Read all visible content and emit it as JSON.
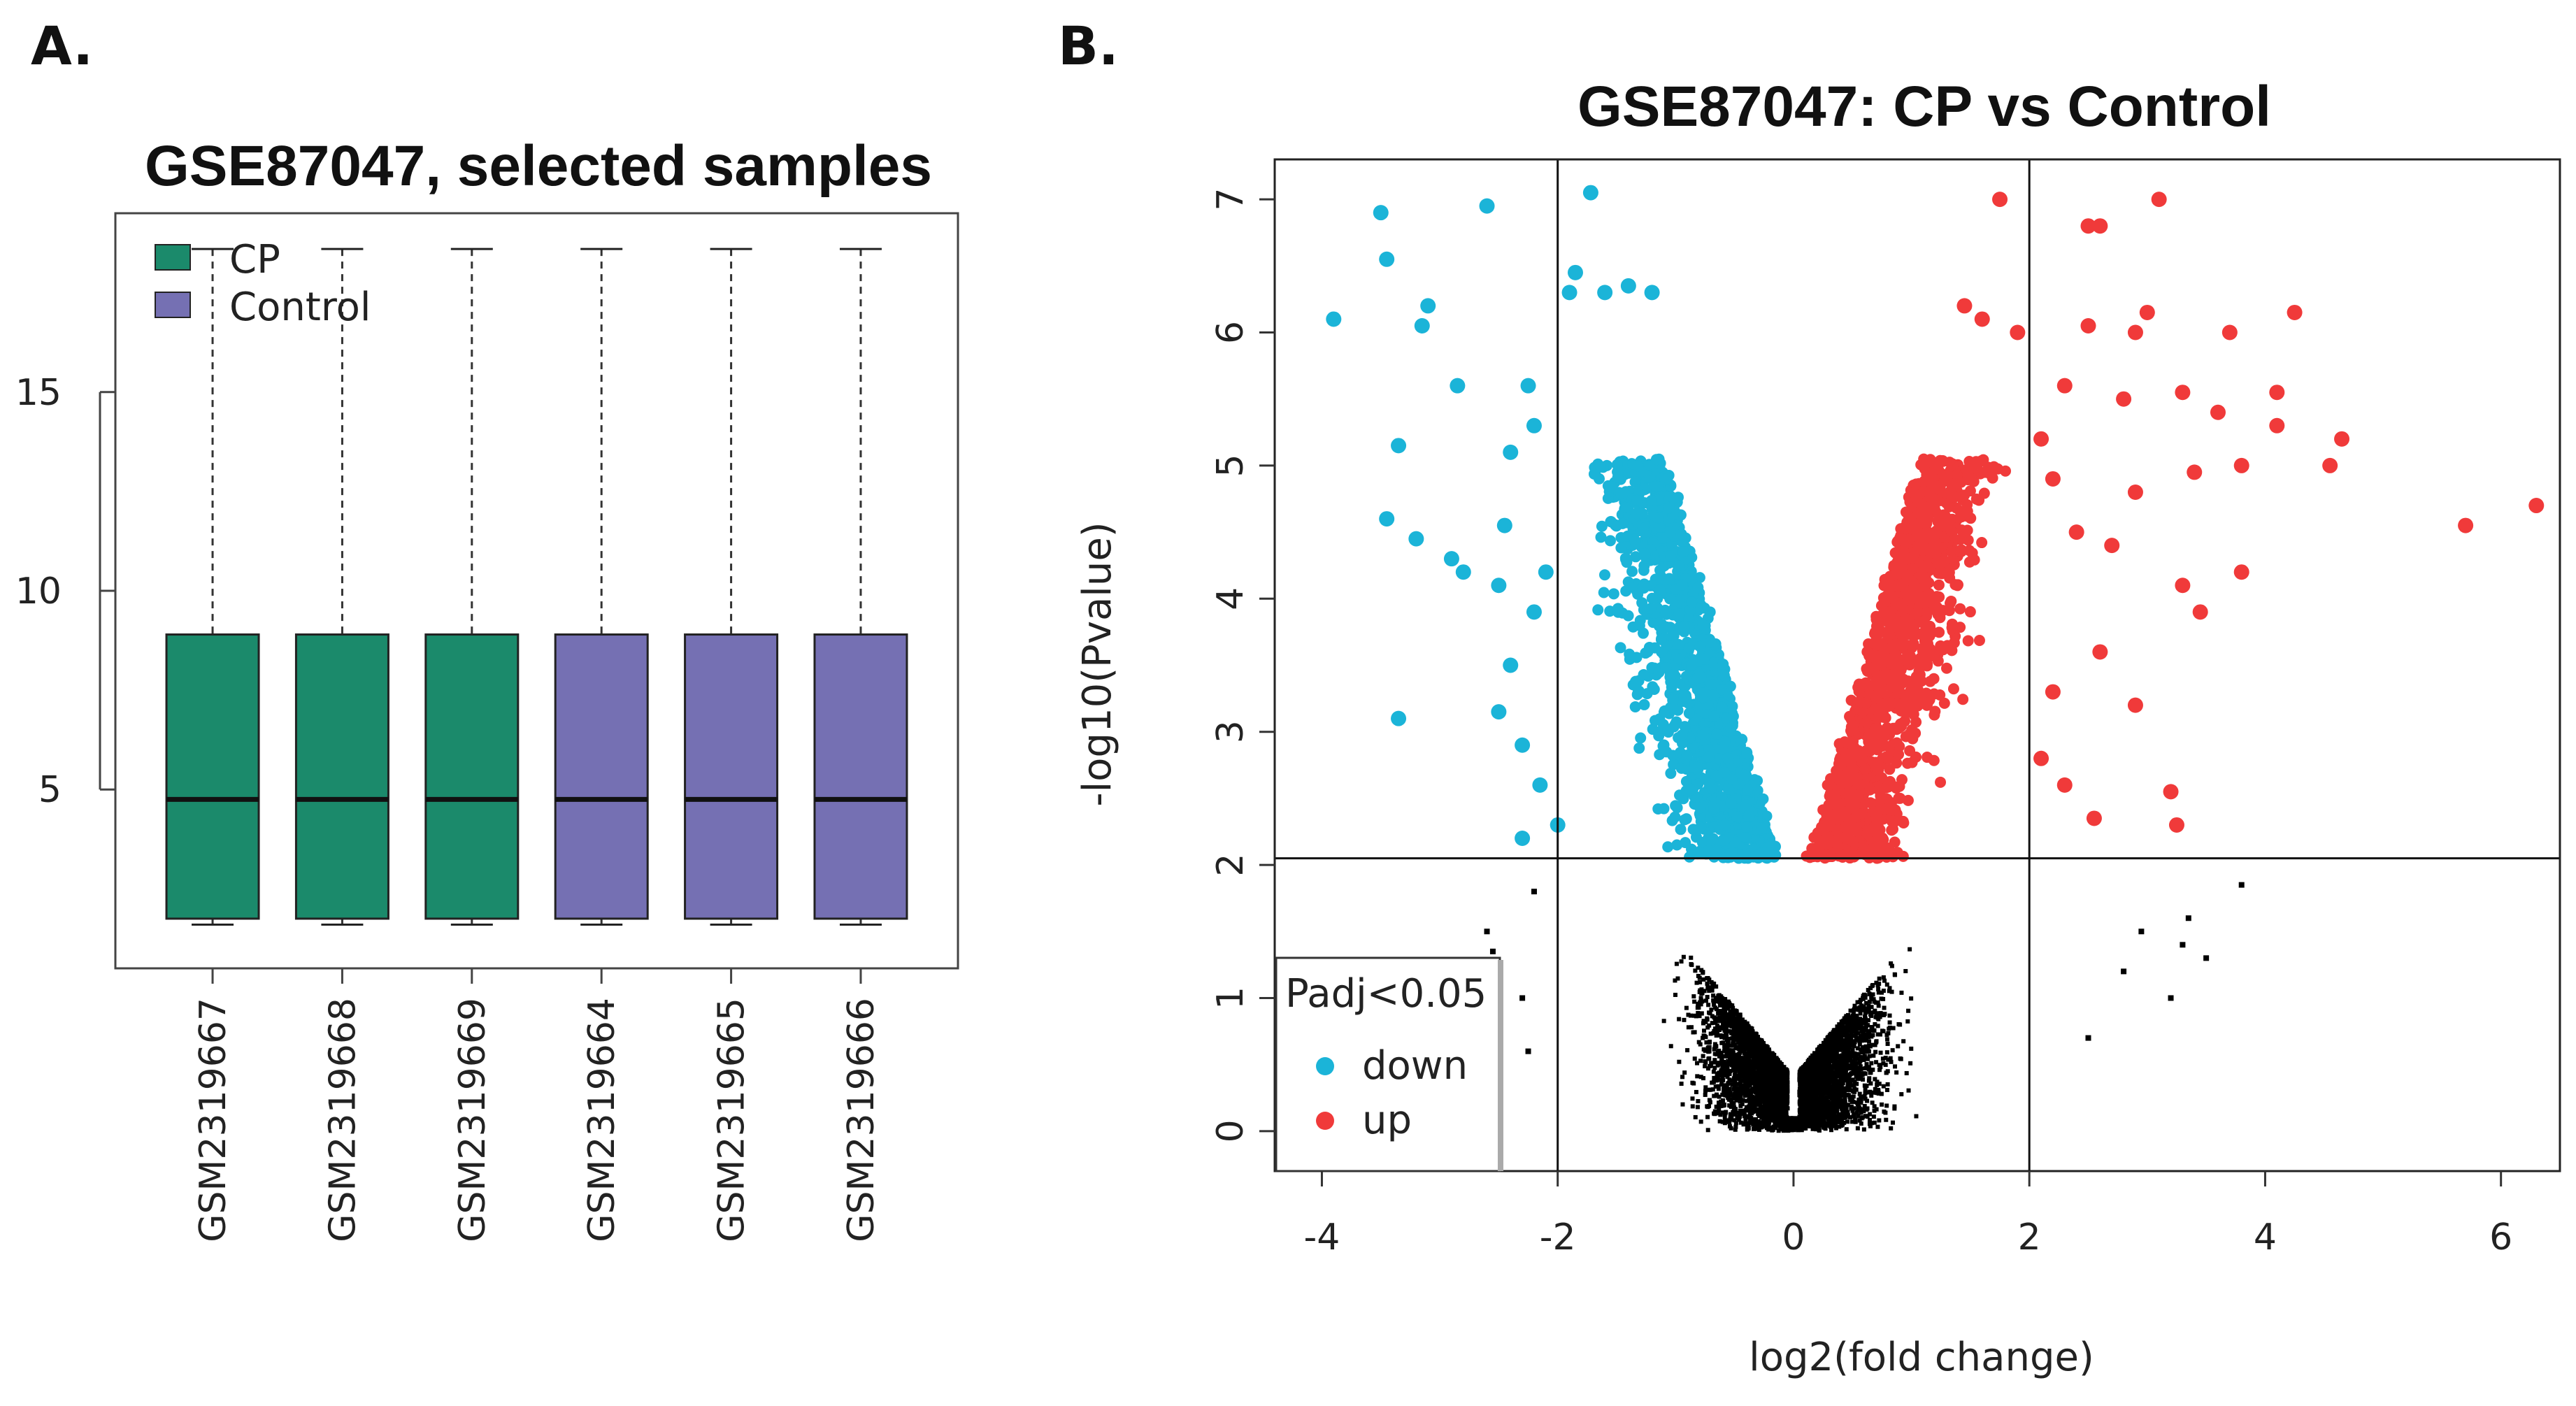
{
  "panels": {
    "a_letter": "A.",
    "b_letter": "B."
  },
  "chart_data": [
    {
      "type": "boxplot",
      "title": "GSE87047, selected samples",
      "xlabel": "",
      "ylabel": "",
      "ylim": [
        0.5,
        19.5
      ],
      "yticks": [
        "5",
        "10",
        "15"
      ],
      "ytick_values": [
        5,
        10,
        15
      ],
      "legend": {
        "position": "top-left",
        "entries": [
          {
            "label": "CP",
            "color": "#1b8a6b"
          },
          {
            "label": "Control",
            "color": "#7570b3"
          }
        ]
      },
      "samples": [
        {
          "name": "GSM2319667",
          "group": "CP",
          "color": "#1b8a6b",
          "min": 1.6,
          "q1": 1.75,
          "median": 4.75,
          "q3": 8.9,
          "max": 18.6
        },
        {
          "name": "GSM2319668",
          "group": "CP",
          "color": "#1b8a6b",
          "min": 1.6,
          "q1": 1.75,
          "median": 4.75,
          "q3": 8.9,
          "max": 18.6
        },
        {
          "name": "GSM2319669",
          "group": "CP",
          "color": "#1b8a6b",
          "min": 1.6,
          "q1": 1.75,
          "median": 4.75,
          "q3": 8.9,
          "max": 18.6
        },
        {
          "name": "GSM2319664",
          "group": "Control",
          "color": "#7570b3",
          "min": 1.6,
          "q1": 1.75,
          "median": 4.75,
          "q3": 8.9,
          "max": 18.6
        },
        {
          "name": "GSM2319665",
          "group": "Control",
          "color": "#7570b3",
          "min": 1.6,
          "q1": 1.75,
          "median": 4.75,
          "q3": 8.9,
          "max": 18.6
        },
        {
          "name": "GSM2319666",
          "group": "Control",
          "color": "#7570b3",
          "min": 1.6,
          "q1": 1.75,
          "median": 4.75,
          "q3": 8.9,
          "max": 18.6
        }
      ]
    },
    {
      "type": "scatter",
      "title": "GSE87047: CP vs Control",
      "xlabel": "log2(fold change)",
      "ylabel": "-log10(Pvalue)",
      "xlim": [
        -4.4,
        6.5
      ],
      "ylim": [
        -0.3,
        7.3
      ],
      "xticks": [
        "-4",
        "-2",
        "0",
        "2",
        "4",
        "6"
      ],
      "xtick_values": [
        -4,
        -2,
        0,
        2,
        4,
        6
      ],
      "yticks": [
        "0",
        "1",
        "2",
        "3",
        "4",
        "5",
        "6",
        "7"
      ],
      "ytick_values": [
        0,
        1,
        2,
        3,
        4,
        5,
        6,
        7
      ],
      "thresholds": {
        "vertical": [
          -2,
          2
        ],
        "horizontal": 2.05
      },
      "legend": {
        "position": "bottom-left",
        "title": "Padj<0.05",
        "entries": [
          {
            "label": "down",
            "color": "#1bb4d8"
          },
          {
            "label": "up",
            "color": "#f03a3a"
          }
        ]
      },
      "colors": {
        "down": "#1bb4d8",
        "up": "#f03a3a",
        "ns": "#000000"
      },
      "series": [
        {
          "name": "down",
          "points": [
            [
              -3.9,
              6.1
            ],
            [
              -3.5,
              6.9
            ],
            [
              -3.45,
              6.55
            ],
            [
              -3.1,
              6.2
            ],
            [
              -3.15,
              6.05
            ],
            [
              -2.6,
              6.95
            ],
            [
              -1.72,
              7.05
            ],
            [
              -2.85,
              5.6
            ],
            [
              -3.35,
              5.15
            ],
            [
              -2.4,
              5.1
            ],
            [
              -3.45,
              4.6
            ],
            [
              -3.2,
              4.45
            ],
            [
              -2.9,
              4.3
            ],
            [
              -2.8,
              4.2
            ],
            [
              -2.5,
              4.1
            ],
            [
              -2.45,
              4.55
            ],
            [
              -3.35,
              3.1
            ],
            [
              -2.5,
              3.15
            ],
            [
              -2.4,
              3.5
            ],
            [
              -2.2,
              3.9
            ],
            [
              -2.1,
              4.2
            ],
            [
              -2.0,
              2.3
            ],
            [
              -2.3,
              2.2
            ],
            [
              -2.15,
              2.6
            ],
            [
              -2.3,
              2.9
            ],
            [
              -2.25,
              5.6
            ],
            [
              -2.2,
              5.3
            ],
            [
              -1.9,
              6.3
            ],
            [
              -1.85,
              6.45
            ],
            [
              -1.6,
              6.3
            ],
            [
              -1.4,
              6.35
            ],
            [
              -1.2,
              6.3
            ]
          ]
        },
        {
          "name": "up",
          "points": [
            [
              1.75,
              7.0
            ],
            [
              3.1,
              7.0
            ],
            [
              2.5,
              6.8
            ],
            [
              2.6,
              6.8
            ],
            [
              4.25,
              6.15
            ],
            [
              3.0,
              6.15
            ],
            [
              3.7,
              6.0
            ],
            [
              2.9,
              6.0
            ],
            [
              2.5,
              6.05
            ],
            [
              3.3,
              5.55
            ],
            [
              4.1,
              5.55
            ],
            [
              4.1,
              5.3
            ],
            [
              4.65,
              5.2
            ],
            [
              4.55,
              5.0
            ],
            [
              3.4,
              4.95
            ],
            [
              3.6,
              5.4
            ],
            [
              3.8,
              5.0
            ],
            [
              6.3,
              4.7
            ],
            [
              5.7,
              4.55
            ],
            [
              3.8,
              4.2
            ],
            [
              3.3,
              4.1
            ],
            [
              3.45,
              3.9
            ],
            [
              2.9,
              3.2
            ],
            [
              3.2,
              2.55
            ],
            [
              3.25,
              2.3
            ],
            [
              2.55,
              2.35
            ],
            [
              2.3,
              2.6
            ],
            [
              2.1,
              2.8
            ],
            [
              2.2,
              3.3
            ],
            [
              2.6,
              3.6
            ],
            [
              2.7,
              4.4
            ],
            [
              2.4,
              4.5
            ],
            [
              2.2,
              4.9
            ],
            [
              2.9,
              4.8
            ],
            [
              2.8,
              5.5
            ],
            [
              2.3,
              5.6
            ],
            [
              2.1,
              5.2
            ],
            [
              1.9,
              6.0
            ],
            [
              1.6,
              6.1
            ],
            [
              1.45,
              6.2
            ]
          ]
        },
        {
          "name": "ns",
          "points": [
            [
              -2.55,
              1.35
            ],
            [
              -2.3,
              1.0
            ],
            [
              -2.25,
              0.6
            ],
            [
              -2.6,
              1.5
            ],
            [
              -2.2,
              1.8
            ],
            [
              3.8,
              1.85
            ],
            [
              3.35,
              1.6
            ],
            [
              3.3,
              1.4
            ],
            [
              3.5,
              1.3
            ],
            [
              3.2,
              1.0
            ],
            [
              2.95,
              1.5
            ],
            [
              2.8,
              1.2
            ],
            [
              2.5,
              0.7
            ]
          ]
        }
      ]
    }
  ]
}
